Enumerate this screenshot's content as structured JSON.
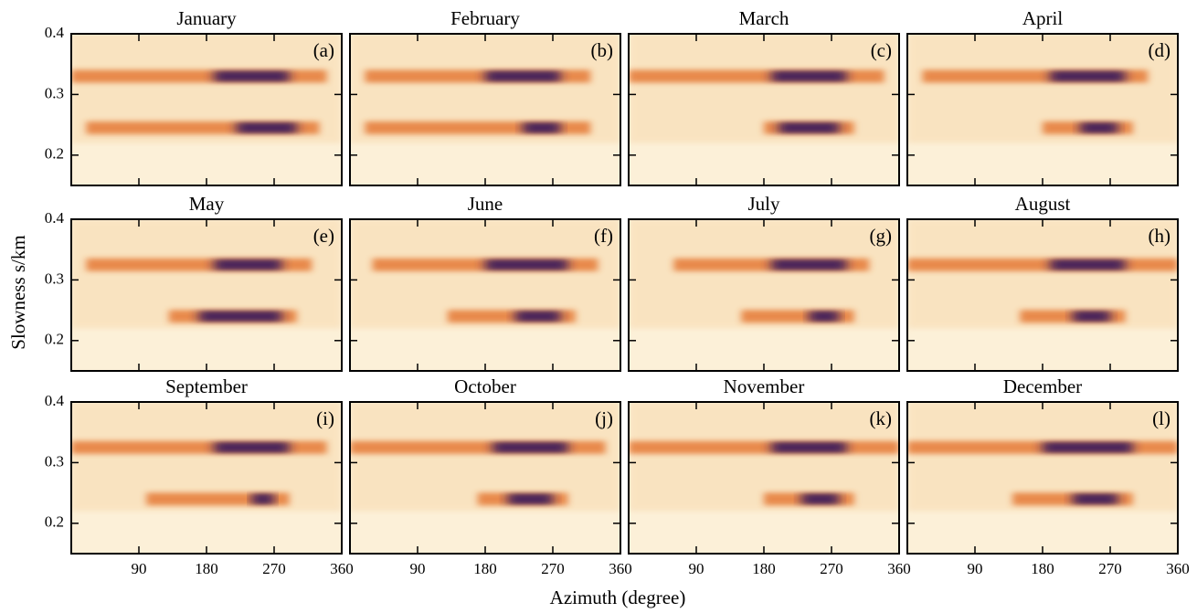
{
  "chart_data": {
    "type": "heatmap-grid",
    "xlabel": "Azimuth (degree)",
    "ylabel": "Slowness s/km",
    "xlim": [
      0,
      360
    ],
    "ylim": [
      0.15,
      0.4
    ],
    "xticks": [
      90,
      180,
      270,
      360
    ],
    "yticks": [
      0.2,
      0.3,
      0.4
    ],
    "panels": [
      {
        "title": "January",
        "label": "(a)",
        "bands": [
          {
            "slowness": 0.33,
            "azimuth": [
              0,
              340
            ],
            "peak": [
              190,
              290
            ]
          },
          {
            "slowness": 0.245,
            "azimuth": [
              20,
              330
            ],
            "peak": [
              220,
              300
            ]
          }
        ]
      },
      {
        "title": "February",
        "label": "(b)",
        "bands": [
          {
            "slowness": 0.33,
            "azimuth": [
              20,
              320
            ],
            "peak": [
              180,
              280
            ]
          },
          {
            "slowness": 0.245,
            "azimuth": [
              20,
              320
            ],
            "peak": [
              230,
              280
            ]
          }
        ]
      },
      {
        "title": "March",
        "label": "(c)",
        "bands": [
          {
            "slowness": 0.33,
            "azimuth": [
              0,
              340
            ],
            "peak": [
              190,
              290
            ]
          },
          {
            "slowness": 0.245,
            "azimuth": [
              180,
              300
            ],
            "peak": [
              200,
              280
            ]
          }
        ]
      },
      {
        "title": "April",
        "label": "(d)",
        "bands": [
          {
            "slowness": 0.33,
            "azimuth": [
              20,
              320
            ],
            "peak": [
              190,
              290
            ]
          },
          {
            "slowness": 0.245,
            "azimuth": [
              180,
              300
            ],
            "peak": [
              230,
              280
            ]
          }
        ]
      },
      {
        "title": "May",
        "label": "(e)",
        "bands": [
          {
            "slowness": 0.325,
            "azimuth": [
              20,
              320
            ],
            "peak": [
              190,
              280
            ]
          },
          {
            "slowness": 0.24,
            "azimuth": [
              130,
              300
            ],
            "peak": [
              170,
              280
            ]
          }
        ]
      },
      {
        "title": "June",
        "label": "(f)",
        "bands": [
          {
            "slowness": 0.325,
            "azimuth": [
              30,
              330
            ],
            "peak": [
              180,
              290
            ]
          },
          {
            "slowness": 0.24,
            "azimuth": [
              130,
              300
            ],
            "peak": [
              220,
              280
            ]
          }
        ]
      },
      {
        "title": "July",
        "label": "(g)",
        "bands": [
          {
            "slowness": 0.325,
            "azimuth": [
              60,
              320
            ],
            "peak": [
              190,
              290
            ]
          },
          {
            "slowness": 0.24,
            "azimuth": [
              150,
              300
            ],
            "peak": [
              240,
              280
            ]
          }
        ]
      },
      {
        "title": "August",
        "label": "(h)",
        "bands": [
          {
            "slowness": 0.325,
            "azimuth": [
              0,
              360
            ],
            "peak": [
              190,
              290
            ]
          },
          {
            "slowness": 0.24,
            "azimuth": [
              150,
              290
            ],
            "peak": [
              220,
              270
            ]
          }
        ]
      },
      {
        "title": "September",
        "label": "(i)",
        "bands": [
          {
            "slowness": 0.325,
            "azimuth": [
              0,
              340
            ],
            "peak": [
              190,
              290
            ]
          },
          {
            "slowness": 0.24,
            "azimuth": [
              100,
              290
            ],
            "peak": [
              240,
              270
            ]
          }
        ]
      },
      {
        "title": "October",
        "label": "(j)",
        "bands": [
          {
            "slowness": 0.325,
            "azimuth": [
              0,
              340
            ],
            "peak": [
              190,
              290
            ]
          },
          {
            "slowness": 0.24,
            "azimuth": [
              170,
              290
            ],
            "peak": [
              210,
              270
            ]
          }
        ]
      },
      {
        "title": "November",
        "label": "(k)",
        "bands": [
          {
            "slowness": 0.325,
            "azimuth": [
              0,
              360
            ],
            "peak": [
              190,
              290
            ]
          },
          {
            "slowness": 0.24,
            "azimuth": [
              180,
              300
            ],
            "peak": [
              230,
              280
            ]
          }
        ]
      },
      {
        "title": "December",
        "label": "(l)",
        "bands": [
          {
            "slowness": 0.325,
            "azimuth": [
              0,
              360
            ],
            "peak": [
              180,
              300
            ]
          },
          {
            "slowness": 0.24,
            "azimuth": [
              140,
              300
            ],
            "peak": [
              220,
              280
            ]
          }
        ]
      }
    ]
  }
}
